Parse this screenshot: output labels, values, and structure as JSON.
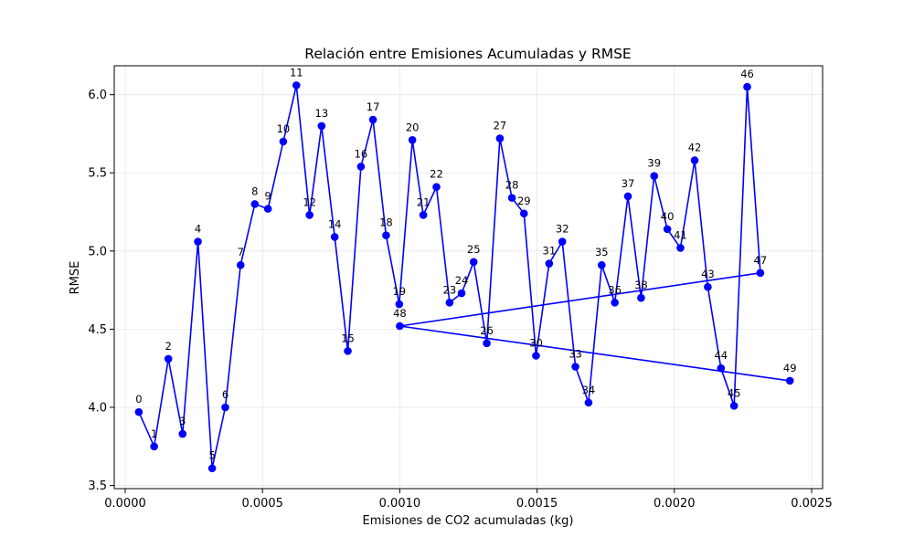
{
  "chart_data": {
    "type": "line",
    "title": "Relación entre Emisiones Acumuladas y RMSE",
    "xlabel": "Emisiones de CO2 acumuladas (kg)",
    "ylabel": "RMSE",
    "xlim": [
      -4e-05,
      0.00254
    ],
    "ylim": [
      3.48,
      6.185
    ],
    "grid": true,
    "xticks": [
      0.0,
      0.0005,
      0.001,
      0.0015,
      0.002,
      0.0025
    ],
    "xtick_labels": [
      "0.0000",
      "0.0005",
      "0.0010",
      "0.0015",
      "0.0020",
      "0.0025"
    ],
    "yticks": [
      3.5,
      4.0,
      4.5,
      5.0,
      5.5,
      6.0
    ],
    "ytick_labels": [
      "3.5",
      "4.0",
      "4.5",
      "5.0",
      "5.5",
      "6.0"
    ],
    "line_color": "#0000ff",
    "marker_color": "#0000ff",
    "x": [
      4.95e-05,
      0.0001053,
      0.0001571,
      0.0002089,
      0.0002648,
      0.0003166,
      0.0003644,
      0.0004202,
      0.000472,
      0.0005198,
      0.0005756,
      0.0006234,
      0.0006713,
      0.0007151,
      0.0007629,
      0.0008107,
      0.0008585,
      0.0009024,
      0.0009502,
      0.000998,
      0.0010458,
      0.0010857,
      0.0011335,
      0.0011813,
      0.0012252,
      0.001269,
      0.0013168,
      0.0013646,
      0.0014085,
      0.0014523,
      0.0014962,
      0.0015441,
      0.0015919,
      0.0016397,
      0.0016875,
      0.0017353,
      0.0017832,
      0.001831,
      0.0018788,
      0.0019266,
      0.0019745,
      0.0020223,
      0.0020741,
      0.0021219,
      0.0021698,
      0.0022176,
      0.0022654,
      0.0023132,
      0.001,
      0.0024209
    ],
    "y": [
      3.97,
      3.75,
      4.31,
      3.83,
      5.06,
      3.61,
      4.0,
      4.91,
      5.3,
      5.27,
      5.7,
      6.06,
      5.23,
      5.8,
      5.09,
      4.36,
      5.54,
      5.84,
      5.1,
      4.66,
      5.71,
      5.23,
      5.41,
      4.67,
      4.73,
      4.93,
      4.41,
      5.72,
      5.34,
      5.24,
      4.33,
      4.92,
      5.06,
      4.26,
      4.03,
      4.91,
      4.67,
      5.35,
      4.7,
      5.48,
      5.14,
      5.02,
      5.58,
      4.77,
      4.25,
      4.01,
      6.05,
      4.86,
      4.52,
      4.17
    ],
    "point_labels": [
      "0",
      "1",
      "2",
      "3",
      "4",
      "5",
      "6",
      "7",
      "8",
      "9",
      "10",
      "11",
      "12",
      "13",
      "14",
      "15",
      "16",
      "17",
      "18",
      "19",
      "20",
      "21",
      "22",
      "23",
      "24",
      "25",
      "26",
      "27",
      "28",
      "29",
      "30",
      "31",
      "32",
      "33",
      "34",
      "35",
      "36",
      "37",
      "38",
      "39",
      "40",
      "41",
      "42",
      "43",
      "44",
      "45",
      "46",
      "47",
      "48",
      "49"
    ]
  }
}
